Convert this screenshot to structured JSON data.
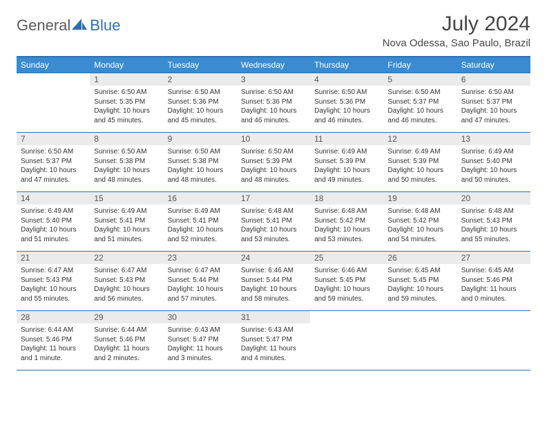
{
  "logo": {
    "text1": "General",
    "text2": "Blue"
  },
  "title": "July 2024",
  "location": "Nova Odessa, Sao Paulo, Brazil",
  "colors": {
    "header_bg": "#3a8bd0",
    "header_border": "#2f6fb0",
    "daynum_bg": "#ebebeb",
    "text": "#464646"
  },
  "weekdays": [
    "Sunday",
    "Monday",
    "Tuesday",
    "Wednesday",
    "Thursday",
    "Friday",
    "Saturday"
  ],
  "weeks": [
    [
      {
        "n": "",
        "sunrise": "",
        "sunset": "",
        "daylight": ""
      },
      {
        "n": "1",
        "sunrise": "Sunrise: 6:50 AM",
        "sunset": "Sunset: 5:35 PM",
        "daylight": "Daylight: 10 hours and 45 minutes."
      },
      {
        "n": "2",
        "sunrise": "Sunrise: 6:50 AM",
        "sunset": "Sunset: 5:36 PM",
        "daylight": "Daylight: 10 hours and 45 minutes."
      },
      {
        "n": "3",
        "sunrise": "Sunrise: 6:50 AM",
        "sunset": "Sunset: 5:36 PM",
        "daylight": "Daylight: 10 hours and 46 minutes."
      },
      {
        "n": "4",
        "sunrise": "Sunrise: 6:50 AM",
        "sunset": "Sunset: 5:36 PM",
        "daylight": "Daylight: 10 hours and 46 minutes."
      },
      {
        "n": "5",
        "sunrise": "Sunrise: 6:50 AM",
        "sunset": "Sunset: 5:37 PM",
        "daylight": "Daylight: 10 hours and 46 minutes."
      },
      {
        "n": "6",
        "sunrise": "Sunrise: 6:50 AM",
        "sunset": "Sunset: 5:37 PM",
        "daylight": "Daylight: 10 hours and 47 minutes."
      }
    ],
    [
      {
        "n": "7",
        "sunrise": "Sunrise: 6:50 AM",
        "sunset": "Sunset: 5:37 PM",
        "daylight": "Daylight: 10 hours and 47 minutes."
      },
      {
        "n": "8",
        "sunrise": "Sunrise: 6:50 AM",
        "sunset": "Sunset: 5:38 PM",
        "daylight": "Daylight: 10 hours and 48 minutes."
      },
      {
        "n": "9",
        "sunrise": "Sunrise: 6:50 AM",
        "sunset": "Sunset: 5:38 PM",
        "daylight": "Daylight: 10 hours and 48 minutes."
      },
      {
        "n": "10",
        "sunrise": "Sunrise: 6:50 AM",
        "sunset": "Sunset: 5:39 PM",
        "daylight": "Daylight: 10 hours and 48 minutes."
      },
      {
        "n": "11",
        "sunrise": "Sunrise: 6:49 AM",
        "sunset": "Sunset: 5:39 PM",
        "daylight": "Daylight: 10 hours and 49 minutes."
      },
      {
        "n": "12",
        "sunrise": "Sunrise: 6:49 AM",
        "sunset": "Sunset: 5:39 PM",
        "daylight": "Daylight: 10 hours and 50 minutes."
      },
      {
        "n": "13",
        "sunrise": "Sunrise: 6:49 AM",
        "sunset": "Sunset: 5:40 PM",
        "daylight": "Daylight: 10 hours and 50 minutes."
      }
    ],
    [
      {
        "n": "14",
        "sunrise": "Sunrise: 6:49 AM",
        "sunset": "Sunset: 5:40 PM",
        "daylight": "Daylight: 10 hours and 51 minutes."
      },
      {
        "n": "15",
        "sunrise": "Sunrise: 6:49 AM",
        "sunset": "Sunset: 5:41 PM",
        "daylight": "Daylight: 10 hours and 51 minutes."
      },
      {
        "n": "16",
        "sunrise": "Sunrise: 6:49 AM",
        "sunset": "Sunset: 5:41 PM",
        "daylight": "Daylight: 10 hours and 52 minutes."
      },
      {
        "n": "17",
        "sunrise": "Sunrise: 6:48 AM",
        "sunset": "Sunset: 5:41 PM",
        "daylight": "Daylight: 10 hours and 53 minutes."
      },
      {
        "n": "18",
        "sunrise": "Sunrise: 6:48 AM",
        "sunset": "Sunset: 5:42 PM",
        "daylight": "Daylight: 10 hours and 53 minutes."
      },
      {
        "n": "19",
        "sunrise": "Sunrise: 6:48 AM",
        "sunset": "Sunset: 5:42 PM",
        "daylight": "Daylight: 10 hours and 54 minutes."
      },
      {
        "n": "20",
        "sunrise": "Sunrise: 6:48 AM",
        "sunset": "Sunset: 5:43 PM",
        "daylight": "Daylight: 10 hours and 55 minutes."
      }
    ],
    [
      {
        "n": "21",
        "sunrise": "Sunrise: 6:47 AM",
        "sunset": "Sunset: 5:43 PM",
        "daylight": "Daylight: 10 hours and 55 minutes."
      },
      {
        "n": "22",
        "sunrise": "Sunrise: 6:47 AM",
        "sunset": "Sunset: 5:43 PM",
        "daylight": "Daylight: 10 hours and 56 minutes."
      },
      {
        "n": "23",
        "sunrise": "Sunrise: 6:47 AM",
        "sunset": "Sunset: 5:44 PM",
        "daylight": "Daylight: 10 hours and 57 minutes."
      },
      {
        "n": "24",
        "sunrise": "Sunrise: 6:46 AM",
        "sunset": "Sunset: 5:44 PM",
        "daylight": "Daylight: 10 hours and 58 minutes."
      },
      {
        "n": "25",
        "sunrise": "Sunrise: 6:46 AM",
        "sunset": "Sunset: 5:45 PM",
        "daylight": "Daylight: 10 hours and 59 minutes."
      },
      {
        "n": "26",
        "sunrise": "Sunrise: 6:45 AM",
        "sunset": "Sunset: 5:45 PM",
        "daylight": "Daylight: 10 hours and 59 minutes."
      },
      {
        "n": "27",
        "sunrise": "Sunrise: 6:45 AM",
        "sunset": "Sunset: 5:46 PM",
        "daylight": "Daylight: 11 hours and 0 minutes."
      }
    ],
    [
      {
        "n": "28",
        "sunrise": "Sunrise: 6:44 AM",
        "sunset": "Sunset: 5:46 PM",
        "daylight": "Daylight: 11 hours and 1 minute."
      },
      {
        "n": "29",
        "sunrise": "Sunrise: 6:44 AM",
        "sunset": "Sunset: 5:46 PM",
        "daylight": "Daylight: 11 hours and 2 minutes."
      },
      {
        "n": "30",
        "sunrise": "Sunrise: 6:43 AM",
        "sunset": "Sunset: 5:47 PM",
        "daylight": "Daylight: 11 hours and 3 minutes."
      },
      {
        "n": "31",
        "sunrise": "Sunrise: 6:43 AM",
        "sunset": "Sunset: 5:47 PM",
        "daylight": "Daylight: 11 hours and 4 minutes."
      },
      {
        "n": "",
        "sunrise": "",
        "sunset": "",
        "daylight": ""
      },
      {
        "n": "",
        "sunrise": "",
        "sunset": "",
        "daylight": ""
      },
      {
        "n": "",
        "sunrise": "",
        "sunset": "",
        "daylight": ""
      }
    ]
  ]
}
